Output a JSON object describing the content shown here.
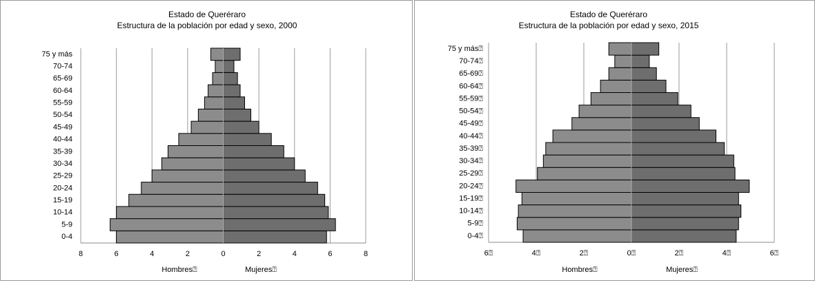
{
  "chart_data": [
    {
      "type": "pyramid",
      "title": "Estado de Queréraro",
      "subtitle": "Estructura de la población por edad y sexo, 2000",
      "categories": [
        "0-4",
        "5-9",
        "10-14",
        "15-19",
        "20-24",
        "25-29",
        "30-34",
        "35-39",
        "40-44",
        "45-49",
        "50-54",
        "55-59",
        "60-64",
        "65-69",
        "70-74",
        "75 y más"
      ],
      "series": [
        {
          "name": "Hombres⍰",
          "color": "#8c8c8c",
          "values": [
            -6.0,
            -6.35,
            -6.0,
            -5.3,
            -4.6,
            -4.0,
            -3.45,
            -3.1,
            -2.5,
            -1.8,
            -1.4,
            -1.05,
            -0.85,
            -0.6,
            -0.45,
            -0.7
          ]
        },
        {
          "name": "Mujeres⍰",
          "color": "#6e6e6e",
          "values": [
            5.8,
            6.3,
            5.9,
            5.7,
            5.3,
            4.6,
            4.0,
            3.4,
            2.7,
            2.0,
            1.55,
            1.2,
            0.95,
            0.8,
            0.6,
            0.95
          ]
        }
      ],
      "xlim": [
        -8,
        8
      ],
      "xticks": [
        {
          "value": -8,
          "label": "8"
        },
        {
          "value": -6,
          "label": "6"
        },
        {
          "value": -4,
          "label": "4"
        },
        {
          "value": -2,
          "label": "2"
        },
        0,
        2,
        4,
        6,
        8
      ],
      "grid": true
    },
    {
      "type": "pyramid",
      "title": "Estado de Queréraro",
      "subtitle": "Estructura de la población por edad y sexo, 2015",
      "categories": [
        "0-4⍰",
        "5-9⍰",
        "10-14⍰",
        "15-19⍰",
        "20-24⍰",
        "25-29⍰",
        "30-34⍰",
        "35-39⍰",
        "40-44⍰",
        "45-49⍰",
        "50-54⍰",
        "55-59⍰",
        "60-64⍰",
        "65-69⍰",
        "70-74⍰",
        "75 y más⍰"
      ],
      "series": [
        {
          "name": "Hombres⍰",
          "color": "#8c8c8c",
          "values": [
            -4.55,
            -4.8,
            -4.75,
            -4.6,
            -4.85,
            -3.95,
            -3.7,
            -3.6,
            -3.3,
            -2.5,
            -2.2,
            -1.7,
            -1.3,
            -0.95,
            -0.7,
            -0.95
          ]
        },
        {
          "name": "Mujeres⍰",
          "color": "#6e6e6e",
          "values": [
            4.4,
            4.5,
            4.6,
            4.5,
            4.95,
            4.35,
            4.3,
            3.9,
            3.55,
            2.85,
            2.5,
            1.95,
            1.45,
            1.05,
            0.75,
            1.15
          ]
        }
      ],
      "xlim": [
        -6,
        6
      ],
      "xticks": [
        {
          "value": -6,
          "label": "6⍰"
        },
        {
          "value": -4,
          "label": "4⍰"
        },
        {
          "value": -2,
          "label": "2⍰"
        },
        {
          "value": 0,
          "label": "0⍰"
        },
        {
          "value": 2,
          "label": "2⍰"
        },
        {
          "value": 4,
          "label": "4⍰"
        },
        {
          "value": 6,
          "label": "6⍰"
        }
      ],
      "grid": true
    }
  ]
}
